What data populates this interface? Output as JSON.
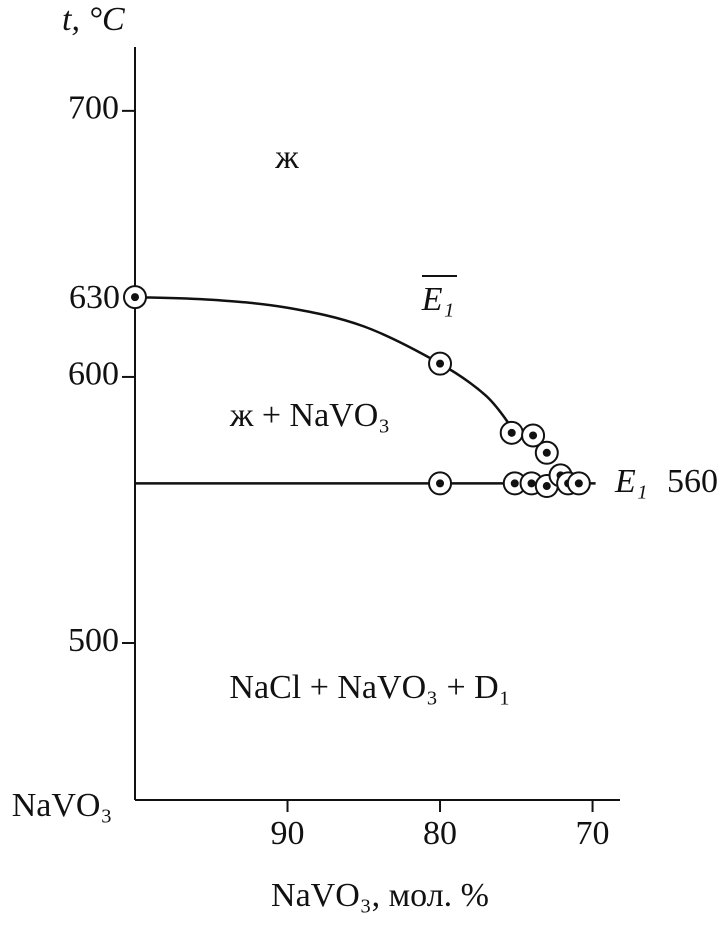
{
  "chart_data": {
    "type": "scatter",
    "y_label": "t, °C",
    "x_label": "NaVO₃, мол. %",
    "origin_label": "NaVO₃",
    "xlim": [
      100,
      68.2
    ],
    "xticks": [
      90,
      80,
      70
    ],
    "ylim": [
      441,
      724
    ],
    "yticks": [
      500,
      600,
      700
    ],
    "lines": [
      {
        "x": [
          100,
          95,
          90,
          85,
          80,
          77,
          75.3
        ],
        "y": [
          630,
          629,
          626,
          619,
          605,
          593,
          581
        ]
      },
      {
        "x": [
          100,
          69.8
        ],
        "y": [
          560,
          560
        ]
      }
    ],
    "points": {
      "x": [
        100,
        80,
        75.3,
        73.9,
        73.0,
        80,
        75.1,
        74.0,
        73.0,
        72.1,
        71.6,
        70.9
      ],
      "y": [
        630,
        605,
        579,
        578,
        571.5,
        560,
        560,
        560,
        559,
        563,
        560,
        560
      ]
    },
    "annotations": {
      "liquid": "ж",
      "liquid_navo3": "ж + NaVO₃",
      "solid": "NaCl + NaVO₃ + D₁",
      "e1_bar": "E₁",
      "e1": "E₁",
      "e1_temp": "560",
      "t630": "630"
    }
  }
}
